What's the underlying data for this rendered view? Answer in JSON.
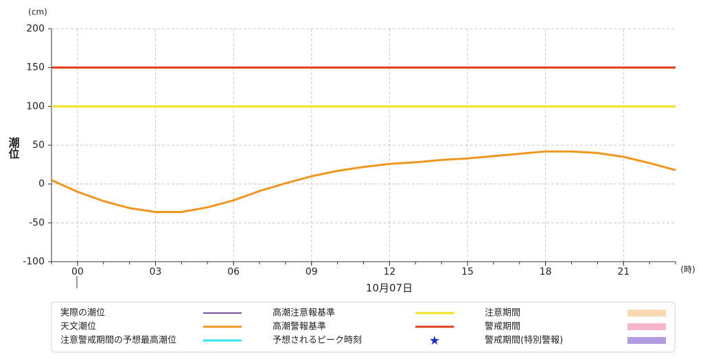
{
  "chart_data": {
    "type": "line",
    "y_unit": "(cm)",
    "x_unit": "(時)",
    "y_label": "潮位",
    "date_label": "10月07日",
    "x": [
      -1,
      0,
      1,
      2,
      3,
      4,
      5,
      6,
      7,
      8,
      9,
      10,
      11,
      12,
      13,
      14,
      15,
      16,
      17,
      18,
      19,
      20,
      21,
      22,
      23
    ],
    "series": [
      {
        "name": "天文潮位",
        "color": "#f0961c",
        "values": [
          5,
          -10,
          -22,
          -31,
          -36,
          -36,
          -30,
          -21,
          -9,
          1,
          10,
          17,
          22,
          26,
          28,
          31,
          33,
          36,
          39,
          42,
          42,
          40,
          35,
          27,
          18
        ]
      }
    ],
    "thresholds": [
      {
        "name": "高潮注意報基準",
        "color": "#f2e21e",
        "value": 100
      },
      {
        "name": "高潮警報基準",
        "color": "#e03c1c",
        "value": 150
      }
    ],
    "legend_extra": [
      {
        "name": "実際の潮位",
        "color": "#4b1a7a",
        "symbol": "thin-line"
      },
      {
        "name": "注意警戒期間の予想最高潮位",
        "color": "#2de6f0",
        "symbol": "line"
      },
      {
        "name": "予想されるピーク時刻",
        "color": "#1b2bd6",
        "symbol": "star"
      },
      {
        "name": "注意期間",
        "color": "#fbd9b0",
        "symbol": "rect"
      },
      {
        "name": "警戒期間",
        "color": "#f7b4cc",
        "symbol": "rect"
      },
      {
        "name": "警戒期間(特別警報)",
        "color": "#b39be0",
        "symbol": "rect"
      }
    ],
    "xlim": [
      -1,
      23
    ],
    "xticks": [
      {
        "value": 0,
        "label": "00"
      },
      {
        "value": 3,
        "label": "03"
      },
      {
        "value": 6,
        "label": "06"
      },
      {
        "value": 9,
        "label": "09"
      },
      12,
      15,
      18,
      21
    ],
    "ylim": [
      -100,
      200
    ],
    "yticks": [
      -100,
      -50,
      0,
      50,
      100,
      150,
      200
    ],
    "grid": true
  }
}
